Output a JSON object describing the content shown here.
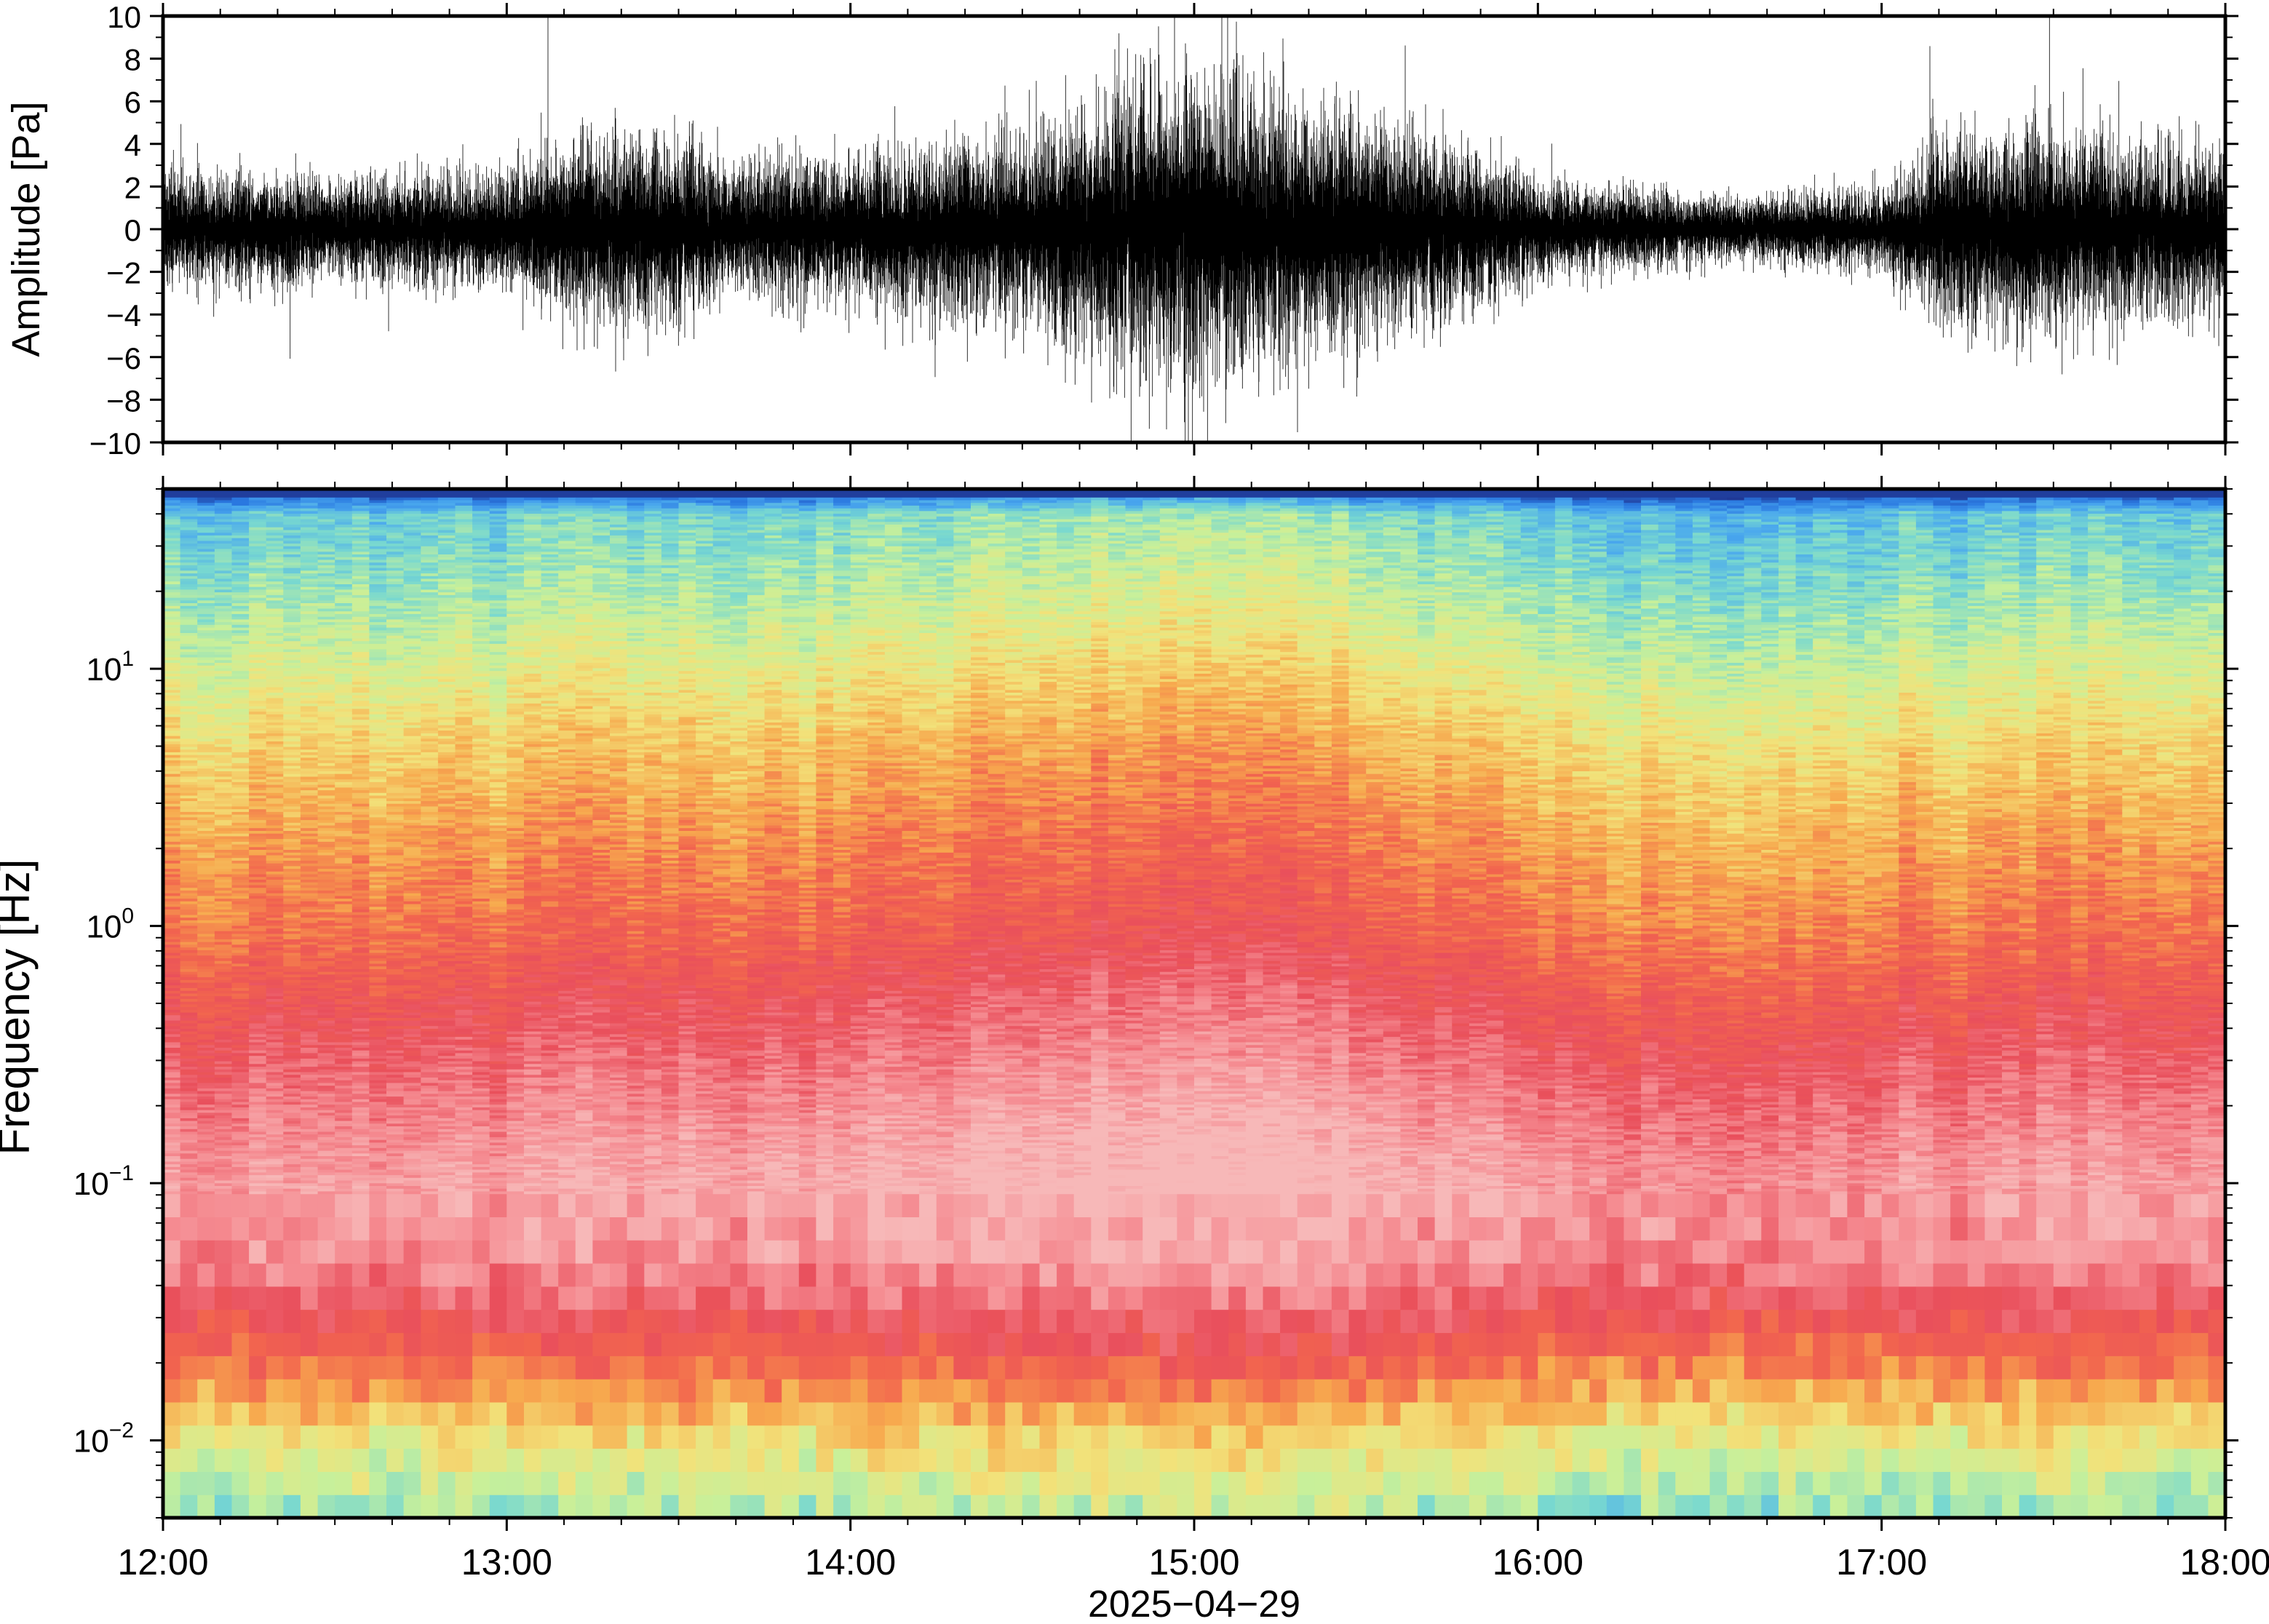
{
  "chart_data": [
    {
      "type": "line",
      "ylabel": "Amplitude [Pa]",
      "ylim": [
        -10,
        10
      ],
      "yticks": [
        -10,
        -8,
        -6,
        -4,
        -2,
        0,
        2,
        4,
        6,
        8,
        10
      ],
      "ytick_labels": [
        "−10",
        "−8",
        "−6",
        "−4",
        "−2",
        "0",
        "2",
        "4",
        "6",
        "8",
        "10"
      ],
      "xlim": [
        "2025-04-29 12:00",
        "2025-04-29 18:00"
      ],
      "x_tick_labels": [],
      "series": [
        {
          "color": "#000000",
          "envelope_time": [
            "12:00",
            "12:30",
            "13:00",
            "13:10",
            "13:30",
            "13:40",
            "14:00",
            "14:30",
            "14:45",
            "15:00",
            "15:15",
            "15:30",
            "15:50",
            "16:00",
            "16:30",
            "17:00",
            "17:10",
            "17:30",
            "17:45",
            "18:00"
          ],
          "envelope_amplitude": [
            2.2,
            2.0,
            2.2,
            3.5,
            3.6,
            2.4,
            3.0,
            3.6,
            5.2,
            6.2,
            5.0,
            4.2,
            3.0,
            1.8,
            1.3,
            1.6,
            3.5,
            4.0,
            3.3,
            3.0
          ],
          "peak_amplitude": 10
        }
      ]
    },
    {
      "type": "heatmap",
      "ylabel": "Frequency [Hz]",
      "xlabel": "2025−04−29",
      "y_scale": "log",
      "ylim": [
        0.005,
        50
      ],
      "yticks": [
        0.01,
        0.1,
        1,
        10
      ],
      "ytick_labels": [
        {
          "base": "10",
          "exp": "−2"
        },
        {
          "base": "10",
          "exp": "−1"
        },
        {
          "base": "10",
          "exp": "0"
        },
        {
          "base": "10",
          "exp": "1"
        }
      ],
      "xlim": [
        "2025-04-29 12:00",
        "2025-04-29 18:00"
      ],
      "x_tick_labels": [
        "12:00",
        "13:00",
        "14:00",
        "15:00",
        "16:00",
        "17:00",
        "18:00"
      ],
      "colormap": [
        "#1e2f8c",
        "#2a78e0",
        "#4aa8ee",
        "#78d8d0",
        "#c8f09a",
        "#f2e27a",
        "#f7a94e",
        "#f2654e",
        "#e94f5c",
        "#f58a90",
        "#f7b8b8"
      ],
      "power_profile": {
        "frequency_hz": [
          0.005,
          0.01,
          0.02,
          0.05,
          0.1,
          0.2,
          0.5,
          1,
          2,
          5,
          10,
          20,
          40,
          50
        ],
        "relative_level": [
          0.33,
          0.48,
          0.68,
          0.9,
          0.94,
          0.87,
          0.76,
          0.67,
          0.61,
          0.52,
          0.43,
          0.34,
          0.26,
          0.0
        ]
      },
      "activity_envelope": {
        "time": [
          "12:00",
          "13:00",
          "13:10",
          "13:40",
          "14:00",
          "14:45",
          "15:00",
          "15:15",
          "15:45",
          "16:00",
          "16:30",
          "17:00",
          "17:05",
          "17:10",
          "17:30",
          "18:00"
        ],
        "level_offset": [
          0.0,
          0.01,
          0.05,
          0.02,
          0.04,
          0.1,
          0.12,
          0.1,
          0.04,
          0.0,
          -0.04,
          -0.02,
          0.07,
          -0.03,
          0.02,
          0.0
        ]
      }
    }
  ]
}
